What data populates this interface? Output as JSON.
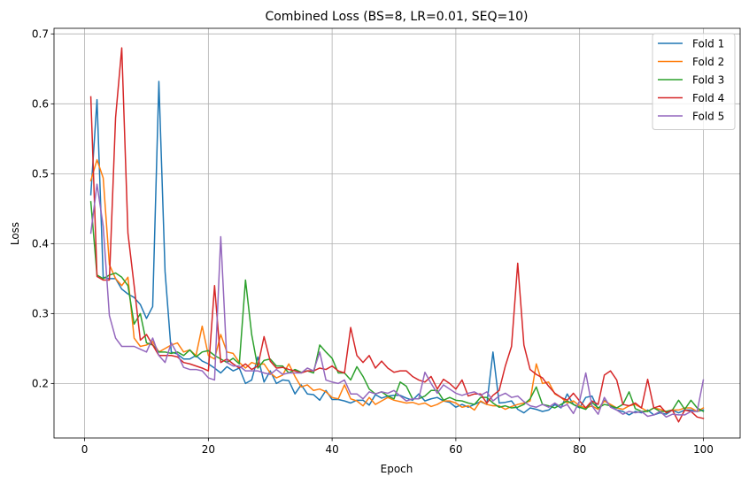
{
  "chart_data": {
    "type": "line",
    "title": "Combined Loss (BS=8, LR=0.01, SEQ=10)",
    "xlabel": "Epoch",
    "ylabel": "Loss",
    "xlim": [
      -4.95,
      105.95
    ],
    "ylim": [
      0.122,
      0.708
    ],
    "xticks": [
      0,
      20,
      40,
      60,
      80,
      100
    ],
    "yticks": [
      0.2,
      0.3,
      0.4,
      0.5,
      0.6,
      0.7
    ],
    "xtick_labels": [
      "0",
      "20",
      "40",
      "60",
      "80",
      "100"
    ],
    "ytick_labels": [
      "0.2",
      "0.3",
      "0.4",
      "0.5",
      "0.6",
      "0.7"
    ],
    "grid": true,
    "legend_position": "top-right",
    "x": [
      1,
      2,
      3,
      4,
      5,
      6,
      7,
      8,
      9,
      10,
      11,
      12,
      13,
      14,
      15,
      16,
      17,
      18,
      19,
      20,
      21,
      22,
      23,
      24,
      25,
      26,
      27,
      28,
      29,
      30,
      31,
      32,
      33,
      34,
      35,
      36,
      37,
      38,
      39,
      40,
      41,
      42,
      43,
      44,
      45,
      46,
      47,
      48,
      49,
      50,
      51,
      52,
      53,
      54,
      55,
      56,
      57,
      58,
      59,
      60,
      61,
      62,
      63,
      64,
      65,
      66,
      67,
      68,
      69,
      70,
      71,
      72,
      73,
      74,
      75,
      76,
      77,
      78,
      79,
      80,
      81,
      82,
      83,
      84,
      85,
      86,
      87,
      88,
      89,
      90,
      91,
      92,
      93,
      94,
      95,
      96,
      97,
      98,
      99,
      100
    ],
    "series": [
      {
        "name": "Fold 1",
        "color": "#1f77b4",
        "values": [
          0.47,
          0.606,
          0.352,
          0.35,
          0.35,
          0.335,
          0.328,
          0.323,
          0.313,
          0.293,
          0.31,
          0.632,
          0.36,
          0.245,
          0.242,
          0.235,
          0.235,
          0.24,
          0.232,
          0.228,
          0.222,
          0.215,
          0.224,
          0.218,
          0.222,
          0.2,
          0.205,
          0.238,
          0.202,
          0.218,
          0.2,
          0.205,
          0.204,
          0.185,
          0.198,
          0.185,
          0.184,
          0.176,
          0.19,
          0.177,
          0.177,
          0.175,
          0.172,
          0.176,
          0.176,
          0.169,
          0.184,
          0.179,
          0.182,
          0.183,
          0.183,
          0.179,
          0.176,
          0.185,
          0.175,
          0.178,
          0.18,
          0.175,
          0.173,
          0.166,
          0.17,
          0.166,
          0.17,
          0.174,
          0.17,
          0.245,
          0.172,
          0.173,
          0.175,
          0.163,
          0.158,
          0.165,
          0.163,
          0.16,
          0.162,
          0.17,
          0.165,
          0.185,
          0.17,
          0.165,
          0.18,
          0.182,
          0.163,
          0.176,
          0.168,
          0.162,
          0.16,
          0.155,
          0.16,
          0.158,
          0.162,
          0.155,
          0.158,
          0.156,
          0.162,
          0.158,
          0.162,
          0.162,
          0.16,
          0.162
        ]
      },
      {
        "name": "Fold 2",
        "color": "#ff7f0e",
        "values": [
          0.49,
          0.52,
          0.494,
          0.37,
          0.35,
          0.34,
          0.352,
          0.265,
          0.253,
          0.255,
          0.26,
          0.245,
          0.25,
          0.255,
          0.258,
          0.245,
          0.248,
          0.24,
          0.282,
          0.24,
          0.235,
          0.27,
          0.245,
          0.243,
          0.23,
          0.222,
          0.23,
          0.227,
          0.228,
          0.215,
          0.208,
          0.212,
          0.228,
          0.21,
          0.195,
          0.198,
          0.19,
          0.192,
          0.188,
          0.18,
          0.178,
          0.198,
          0.178,
          0.175,
          0.168,
          0.18,
          0.17,
          0.175,
          0.18,
          0.176,
          0.174,
          0.172,
          0.173,
          0.17,
          0.172,
          0.167,
          0.17,
          0.175,
          0.175,
          0.172,
          0.166,
          0.168,
          0.162,
          0.175,
          0.17,
          0.168,
          0.168,
          0.163,
          0.167,
          0.17,
          0.172,
          0.175,
          0.228,
          0.2,
          0.202,
          0.185,
          0.18,
          0.172,
          0.175,
          0.168,
          0.165,
          0.168,
          0.163,
          0.175,
          0.17,
          0.165,
          0.163,
          0.168,
          0.17,
          0.165,
          0.16,
          0.165,
          0.163,
          0.16,
          0.162,
          0.162,
          0.165,
          0.165,
          0.16,
          0.165
        ]
      },
      {
        "name": "Fold 3",
        "color": "#2ca02c",
        "values": [
          0.46,
          0.355,
          0.35,
          0.355,
          0.358,
          0.352,
          0.34,
          0.285,
          0.3,
          0.258,
          0.255,
          0.245,
          0.245,
          0.243,
          0.245,
          0.24,
          0.248,
          0.238,
          0.245,
          0.247,
          0.24,
          0.235,
          0.23,
          0.236,
          0.228,
          0.348,
          0.27,
          0.222,
          0.233,
          0.235,
          0.225,
          0.225,
          0.215,
          0.22,
          0.216,
          0.218,
          0.215,
          0.255,
          0.245,
          0.236,
          0.215,
          0.215,
          0.205,
          0.224,
          0.21,
          0.192,
          0.185,
          0.188,
          0.182,
          0.178,
          0.202,
          0.196,
          0.178,
          0.178,
          0.182,
          0.19,
          0.19,
          0.176,
          0.18,
          0.176,
          0.175,
          0.172,
          0.17,
          0.18,
          0.18,
          0.172,
          0.166,
          0.168,
          0.165,
          0.166,
          0.17,
          0.178,
          0.195,
          0.17,
          0.168,
          0.165,
          0.17,
          0.175,
          0.17,
          0.166,
          0.163,
          0.173,
          0.165,
          0.17,
          0.168,
          0.165,
          0.17,
          0.188,
          0.164,
          0.16,
          0.16,
          0.165,
          0.16,
          0.16,
          0.162,
          0.176,
          0.163,
          0.176,
          0.165,
          0.16
        ]
      },
      {
        "name": "Fold 4",
        "color": "#d62728",
        "values": [
          0.61,
          0.353,
          0.348,
          0.348,
          0.58,
          0.68,
          0.415,
          0.34,
          0.262,
          0.27,
          0.255,
          0.24,
          0.24,
          0.24,
          0.238,
          0.23,
          0.228,
          0.225,
          0.222,
          0.218,
          0.34,
          0.23,
          0.235,
          0.228,
          0.222,
          0.228,
          0.22,
          0.225,
          0.267,
          0.232,
          0.222,
          0.223,
          0.22,
          0.218,
          0.215,
          0.218,
          0.218,
          0.222,
          0.22,
          0.225,
          0.218,
          0.215,
          0.28,
          0.24,
          0.23,
          0.24,
          0.222,
          0.232,
          0.222,
          0.216,
          0.218,
          0.218,
          0.21,
          0.205,
          0.202,
          0.21,
          0.192,
          0.206,
          0.2,
          0.192,
          0.205,
          0.182,
          0.185,
          0.185,
          0.172,
          0.183,
          0.19,
          0.225,
          0.253,
          0.372,
          0.255,
          0.22,
          0.213,
          0.208,
          0.196,
          0.186,
          0.18,
          0.176,
          0.186,
          0.175,
          0.165,
          0.175,
          0.17,
          0.212,
          0.218,
          0.205,
          0.17,
          0.168,
          0.172,
          0.165,
          0.206,
          0.165,
          0.168,
          0.158,
          0.162,
          0.145,
          0.162,
          0.16,
          0.152,
          0.15
        ]
      },
      {
        "name": "Fold 5",
        "color": "#9467bd",
        "values": [
          0.415,
          0.485,
          0.425,
          0.297,
          0.265,
          0.253,
          0.253,
          0.253,
          0.249,
          0.245,
          0.265,
          0.24,
          0.23,
          0.258,
          0.242,
          0.223,
          0.22,
          0.22,
          0.218,
          0.208,
          0.205,
          0.41,
          0.23,
          0.225,
          0.225,
          0.218,
          0.218,
          0.218,
          0.215,
          0.213,
          0.22,
          0.213,
          0.215,
          0.215,
          0.215,
          0.222,
          0.218,
          0.245,
          0.205,
          0.202,
          0.2,
          0.205,
          0.185,
          0.185,
          0.178,
          0.188,
          0.185,
          0.188,
          0.186,
          0.19,
          0.182,
          0.175,
          0.178,
          0.178,
          0.216,
          0.2,
          0.186,
          0.198,
          0.192,
          0.186,
          0.183,
          0.186,
          0.188,
          0.183,
          0.188,
          0.175,
          0.182,
          0.186,
          0.18,
          0.182,
          0.174,
          0.168,
          0.166,
          0.17,
          0.166,
          0.172,
          0.166,
          0.17,
          0.157,
          0.175,
          0.215,
          0.168,
          0.156,
          0.18,
          0.166,
          0.162,
          0.156,
          0.16,
          0.158,
          0.16,
          0.153,
          0.155,
          0.16,
          0.152,
          0.156,
          0.155,
          0.155,
          0.16,
          0.16,
          0.205
        ]
      }
    ]
  }
}
